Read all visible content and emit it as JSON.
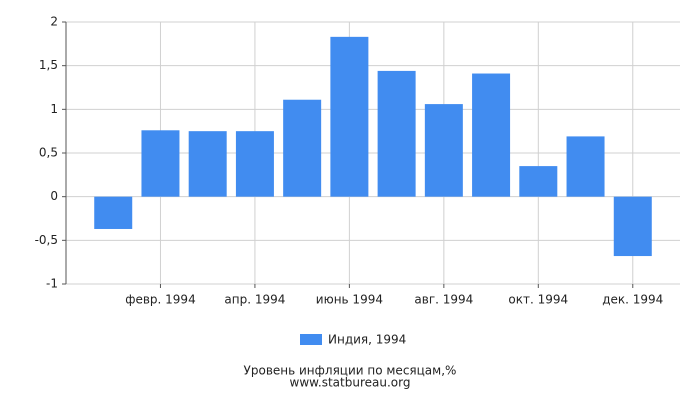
{
  "chart_data": {
    "type": "bar",
    "categories": [
      null,
      "февр. 1994",
      null,
      "апр. 1994",
      null,
      "июнь 1994",
      null,
      "авг. 1994",
      null,
      "окт. 1994",
      null,
      "дек. 1994"
    ],
    "series": [
      {
        "name": "Индия, 1994",
        "color": "#418cf0",
        "values": [
          -0.37,
          0.76,
          0.75,
          0.75,
          1.11,
          1.83,
          1.44,
          1.06,
          1.41,
          0.35,
          0.69,
          -0.68
        ]
      }
    ],
    "ylim": [
      -1,
      2
    ],
    "yticks": [
      -1,
      {
        "value": -0.5,
        "label": "-0,5"
      },
      0,
      {
        "value": 0.5,
        "label": "0,5"
      },
      1,
      {
        "value": 1.5,
        "label": "1,5"
      },
      2
    ],
    "grid": true,
    "caption": "Уровень инфляции по месяцам,%",
    "source": "www.statbureau.org"
  }
}
